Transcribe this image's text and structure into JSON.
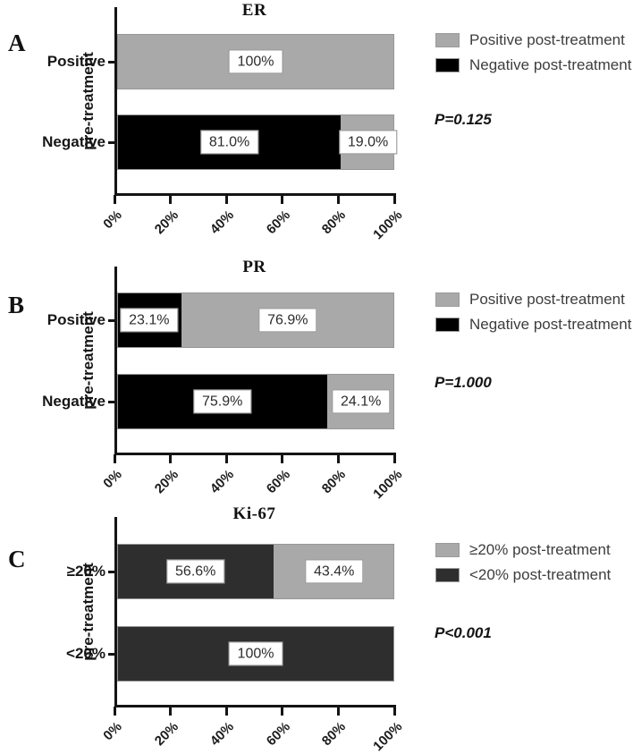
{
  "chart_data": [
    {
      "type": "bar",
      "orientation": "horizontal",
      "stacked": true,
      "panel_letter": "A",
      "title": "ER",
      "ylabel": "pre-treatment",
      "xlim": [
        0,
        100
      ],
      "xticks": [
        "0%",
        "20%",
        "40%",
        "60%",
        "80%",
        "100%"
      ],
      "grid": false,
      "legend_position": "right",
      "p_value": "P=0.125",
      "legend": [
        {
          "label": "Positive post-treatment",
          "color": "#a9a9a9"
        },
        {
          "label": "Negative post-treatment",
          "color": "#000000"
        }
      ],
      "categories": [
        "Positive",
        "Negative"
      ],
      "rows": [
        {
          "category": "Positive",
          "segments": [
            {
              "series": "Positive post-treatment",
              "value": 100,
              "label": "100%",
              "color": "#a9a9a9"
            }
          ]
        },
        {
          "category": "Negative",
          "segments": [
            {
              "series": "Negative post-treatment",
              "value": 81.0,
              "label": "81.0%",
              "color": "#000000"
            },
            {
              "series": "Positive post-treatment",
              "value": 19.0,
              "label": "19.0%",
              "color": "#a9a9a9"
            }
          ]
        }
      ]
    },
    {
      "type": "bar",
      "orientation": "horizontal",
      "stacked": true,
      "panel_letter": "B",
      "title": "PR",
      "ylabel": "pre-treatment",
      "xlim": [
        0,
        100
      ],
      "xticks": [
        "0%",
        "20%",
        "40%",
        "60%",
        "80%",
        "100%"
      ],
      "grid": false,
      "legend_position": "right",
      "p_value": "P=1.000",
      "legend": [
        {
          "label": "Positive post-treatment",
          "color": "#a9a9a9"
        },
        {
          "label": "Negative post-treatment",
          "color": "#000000"
        }
      ],
      "categories": [
        "Positive",
        "Negative"
      ],
      "rows": [
        {
          "category": "Positive",
          "segments": [
            {
              "series": "Negative post-treatment",
              "value": 23.1,
              "label": "23.1%",
              "color": "#000000"
            },
            {
              "series": "Positive post-treatment",
              "value": 76.9,
              "label": "76.9%",
              "color": "#a9a9a9"
            }
          ]
        },
        {
          "category": "Negative",
          "segments": [
            {
              "series": "Negative post-treatment",
              "value": 75.9,
              "label": "75.9%",
              "color": "#000000"
            },
            {
              "series": "Positive post-treatment",
              "value": 24.1,
              "label": "24.1%",
              "color": "#a9a9a9"
            }
          ]
        }
      ]
    },
    {
      "type": "bar",
      "orientation": "horizontal",
      "stacked": true,
      "panel_letter": "C",
      "title": "Ki-67",
      "ylabel": "pre-treatment",
      "xlim": [
        0,
        100
      ],
      "xticks": [
        "0%",
        "20%",
        "40%",
        "60%",
        "80%",
        "100%"
      ],
      "grid": false,
      "legend_position": "right",
      "p_value": "P<0.001",
      "legend": [
        {
          "label": "≥20% post-treatment",
          "color": "#a9a9a9"
        },
        {
          "label": "<20% post-treatment",
          "color": "#2e2e2e"
        }
      ],
      "categories": [
        "≥20%",
        "<20%"
      ],
      "rows": [
        {
          "category": "≥20%",
          "segments": [
            {
              "series": "<20% post-treatment",
              "value": 56.6,
              "label": "56.6%",
              "color": "#2e2e2e"
            },
            {
              "series": "≥20% post-treatment",
              "value": 43.4,
              "label": "43.4%",
              "color": "#a9a9a9"
            }
          ]
        },
        {
          "category": "<20%",
          "segments": [
            {
              "series": "<20% post-treatment",
              "value": 100,
              "label": "100%",
              "color": "#2e2e2e"
            }
          ]
        }
      ]
    }
  ]
}
